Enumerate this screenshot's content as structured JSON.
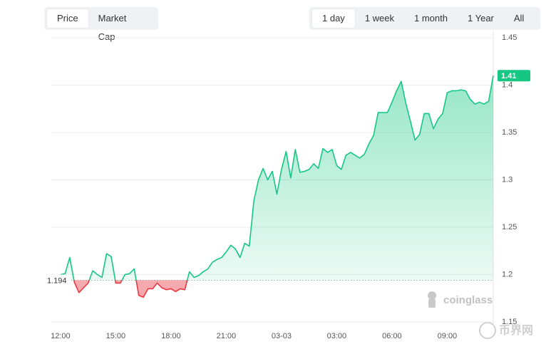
{
  "controls": {
    "metric": [
      "Price",
      "Market Cap"
    ],
    "range": [
      "1 day",
      "1 week",
      "1 month",
      "1 Year",
      "All"
    ]
  },
  "watermarks": [
    "coinglass",
    "币界网"
  ],
  "chart_data": {
    "type": "line",
    "x": [
      0,
      0.25,
      0.5,
      0.75,
      1,
      1.25,
      1.5,
      1.75,
      2,
      2.25,
      2.5,
      2.75,
      3,
      3.25,
      3.5,
      3.75,
      4,
      4.25,
      4.5,
      4.75,
      5,
      5.25,
      5.5,
      5.75,
      6,
      6.25,
      6.5,
      6.75,
      7,
      7.25,
      7.5,
      7.75,
      8,
      8.25,
      8.5,
      8.75,
      9,
      9.25,
      9.5,
      9.75,
      10,
      10.25,
      10.5,
      10.75,
      11,
      11.25,
      11.5,
      11.75,
      12,
      12.25,
      12.5,
      12.75,
      13,
      13.25,
      13.5,
      13.75,
      14,
      14.25,
      14.5,
      14.75,
      15,
      15.25,
      15.5,
      15.75,
      16,
      16.25,
      16.5,
      16.75,
      17,
      17.25,
      17.5,
      17.75,
      18,
      18.25,
      18.5,
      18.75,
      19,
      19.25,
      19.5,
      19.75,
      20,
      20.25,
      20.5,
      20.75,
      21,
      21.25,
      21.5,
      21.75,
      22,
      22.25,
      22.5,
      22.75,
      23,
      23.25,
      23.5
    ],
    "series": [
      {
        "color": "#16c784",
        "negative_color": "#ea3943",
        "values": [
          1.2,
          1.201,
          1.218,
          1.192,
          1.181,
          1.186,
          1.191,
          1.204,
          1.2,
          1.197,
          1.222,
          1.219,
          1.191,
          1.191,
          1.2,
          1.201,
          1.206,
          1.178,
          1.176,
          1.185,
          1.185,
          1.191,
          1.186,
          1.184,
          1.185,
          1.182,
          1.185,
          1.184,
          1.203,
          1.197,
          1.199,
          1.203,
          1.206,
          1.213,
          1.216,
          1.218,
          1.224,
          1.231,
          1.227,
          1.218,
          1.233,
          1.23,
          1.278,
          1.3,
          1.312,
          1.3,
          1.309,
          1.285,
          1.311,
          1.33,
          1.302,
          1.332,
          1.308,
          1.309,
          1.311,
          1.317,
          1.312,
          1.333,
          1.329,
          1.332,
          1.315,
          1.311,
          1.326,
          1.329,
          1.326,
          1.323,
          1.327,
          1.338,
          1.347,
          1.371,
          1.371,
          1.371,
          1.382,
          1.394,
          1.404,
          1.381,
          1.362,
          1.342,
          1.348,
          1.37,
          1.37,
          1.354,
          1.364,
          1.37,
          1.392,
          1.394,
          1.394,
          1.395,
          1.394,
          1.385,
          1.38,
          1.382,
          1.38,
          1.383,
          1.41
        ]
      }
    ],
    "baseline": 1.194,
    "xlim": [
      -0.5,
      23.5
    ],
    "xticks": [
      {
        "value": 0,
        "label": "12:00"
      },
      {
        "value": 3,
        "label": "15:00"
      },
      {
        "value": 6,
        "label": "18:00"
      },
      {
        "value": 9,
        "label": "21:00"
      },
      {
        "value": 12,
        "label": "03-03"
      },
      {
        "value": 15,
        "label": "03:00"
      },
      {
        "value": 18,
        "label": "06:00"
      },
      {
        "value": 21,
        "label": "09:00"
      }
    ],
    "ylim": [
      1.15,
      1.45
    ],
    "yticks": [
      1.15,
      1.2,
      1.25,
      1.3,
      1.35,
      1.4,
      1.45
    ],
    "grid": true
  }
}
